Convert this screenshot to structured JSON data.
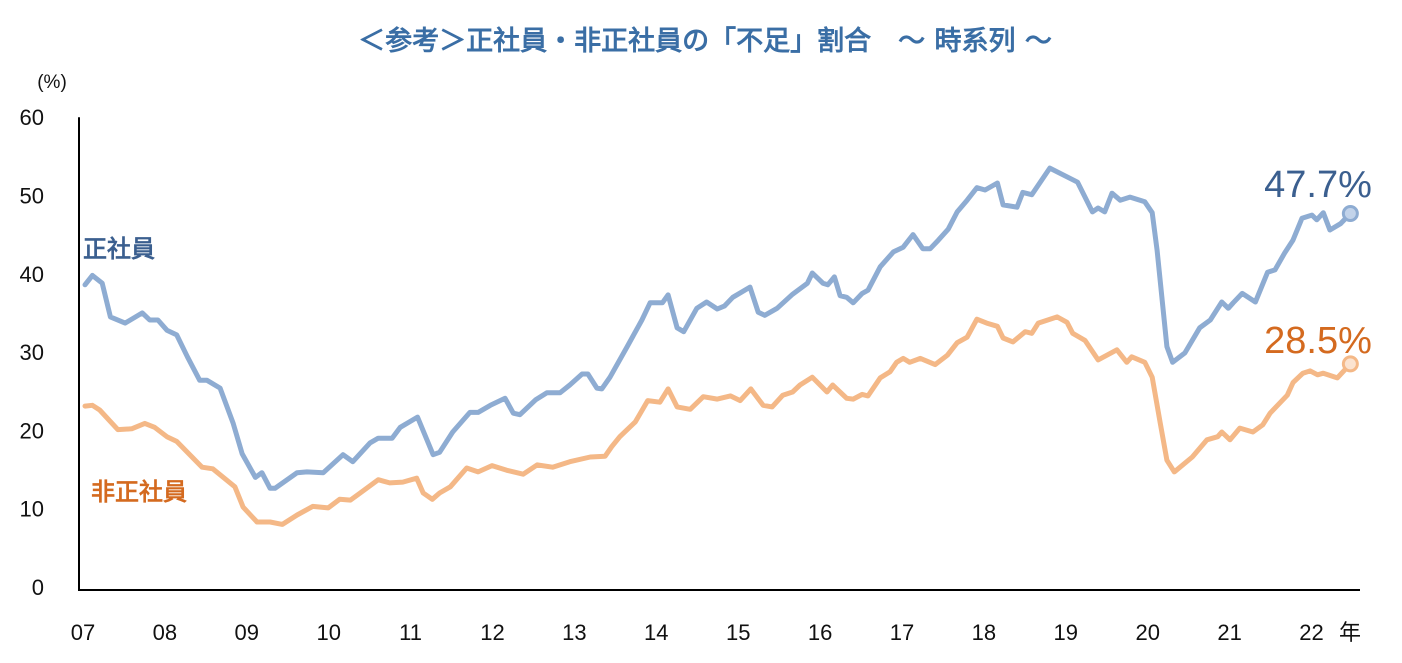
{
  "chart_data": {
    "type": "line",
    "title": "＜参考＞正社員・非正社員の「不足」割合　～ 時系列 ～",
    "ylabel": "(%)",
    "xlabel": "",
    "x_unit_label": "年",
    "ylim": [
      0,
      60
    ],
    "yticks": [
      0,
      10,
      20,
      30,
      40,
      50,
      60
    ],
    "xlim": [
      2007,
      2022.6
    ],
    "xtick_values": [
      2007,
      2008,
      2009,
      2010,
      2011,
      2012,
      2013,
      2014,
      2015,
      2016,
      2017,
      2018,
      2019,
      2020,
      2021,
      2022
    ],
    "xtick_labels": [
      "07",
      "08",
      "09",
      "10",
      "11",
      "12",
      "13",
      "14",
      "15",
      "16",
      "17",
      "18",
      "19",
      "20",
      "21",
      "22"
    ],
    "grid": false,
    "legend": "inline labels",
    "series": [
      {
        "name": "正社員",
        "color": "#8eacd2",
        "label_color": "#3b5f8f",
        "end_label": "47.7%",
        "points": [
          [
            2007.0,
            38.6
          ],
          [
            2007.09,
            39.8
          ],
          [
            2007.21,
            38.8
          ],
          [
            2007.31,
            34.5
          ],
          [
            2007.49,
            33.7
          ],
          [
            2007.7,
            35.0
          ],
          [
            2007.79,
            34.1
          ],
          [
            2007.89,
            34.1
          ],
          [
            2008.0,
            32.8
          ],
          [
            2008.12,
            32.2
          ],
          [
            2008.25,
            29.4
          ],
          [
            2008.4,
            26.4
          ],
          [
            2008.49,
            26.4
          ],
          [
            2008.65,
            25.4
          ],
          [
            2008.81,
            20.9
          ],
          [
            2008.92,
            17.0
          ],
          [
            2009.08,
            14.0
          ],
          [
            2009.16,
            14.6
          ],
          [
            2009.26,
            12.6
          ],
          [
            2009.32,
            12.6
          ],
          [
            2009.59,
            14.6
          ],
          [
            2009.71,
            14.7
          ],
          [
            2009.91,
            14.6
          ],
          [
            2010.15,
            16.9
          ],
          [
            2010.27,
            16.0
          ],
          [
            2010.48,
            18.4
          ],
          [
            2010.58,
            19.0
          ],
          [
            2010.75,
            19.0
          ],
          [
            2010.85,
            20.4
          ],
          [
            2011.06,
            21.7
          ],
          [
            2011.25,
            16.9
          ],
          [
            2011.33,
            17.2
          ],
          [
            2011.49,
            19.8
          ],
          [
            2011.7,
            22.3
          ],
          [
            2011.8,
            22.3
          ],
          [
            2011.95,
            23.2
          ],
          [
            2012.13,
            24.1
          ],
          [
            2012.23,
            22.2
          ],
          [
            2012.31,
            22.0
          ],
          [
            2012.5,
            23.9
          ],
          [
            2012.64,
            24.8
          ],
          [
            2012.8,
            24.8
          ],
          [
            2012.92,
            25.8
          ],
          [
            2013.07,
            27.2
          ],
          [
            2013.14,
            27.2
          ],
          [
            2013.25,
            25.4
          ],
          [
            2013.31,
            25.3
          ],
          [
            2013.41,
            26.8
          ],
          [
            2013.62,
            30.7
          ],
          [
            2013.8,
            34.1
          ],
          [
            2013.9,
            36.3
          ],
          [
            2014.05,
            36.3
          ],
          [
            2014.12,
            37.3
          ],
          [
            2014.23,
            33.1
          ],
          [
            2014.31,
            32.6
          ],
          [
            2014.47,
            35.6
          ],
          [
            2014.59,
            36.4
          ],
          [
            2014.72,
            35.5
          ],
          [
            2014.81,
            35.9
          ],
          [
            2014.91,
            37.0
          ],
          [
            2015.12,
            38.3
          ],
          [
            2015.22,
            35.1
          ],
          [
            2015.3,
            34.7
          ],
          [
            2015.45,
            35.6
          ],
          [
            2015.64,
            37.4
          ],
          [
            2015.82,
            38.8
          ],
          [
            2015.88,
            40.1
          ],
          [
            2016.01,
            38.8
          ],
          [
            2016.07,
            38.6
          ],
          [
            2016.15,
            39.6
          ],
          [
            2016.22,
            37.2
          ],
          [
            2016.3,
            37.0
          ],
          [
            2016.38,
            36.3
          ],
          [
            2016.49,
            37.5
          ],
          [
            2016.56,
            37.9
          ],
          [
            2016.71,
            40.9
          ],
          [
            2016.87,
            42.8
          ],
          [
            2016.99,
            43.4
          ],
          [
            2017.11,
            45.0
          ],
          [
            2017.23,
            43.2
          ],
          [
            2017.32,
            43.2
          ],
          [
            2017.42,
            44.3
          ],
          [
            2017.54,
            45.7
          ],
          [
            2017.65,
            47.9
          ],
          [
            2017.77,
            49.4
          ],
          [
            2017.89,
            51.0
          ],
          [
            2017.99,
            50.7
          ],
          [
            2018.14,
            51.6
          ],
          [
            2018.21,
            48.8
          ],
          [
            2018.38,
            48.5
          ],
          [
            2018.45,
            50.4
          ],
          [
            2018.56,
            50.1
          ],
          [
            2018.78,
            53.5
          ],
          [
            2019.12,
            51.7
          ],
          [
            2019.3,
            47.9
          ],
          [
            2019.37,
            48.4
          ],
          [
            2019.45,
            47.9
          ],
          [
            2019.54,
            50.3
          ],
          [
            2019.64,
            49.4
          ],
          [
            2019.76,
            49.8
          ],
          [
            2019.94,
            49.2
          ],
          [
            2020.03,
            47.8
          ],
          [
            2020.09,
            43.0
          ],
          [
            2020.21,
            30.7
          ],
          [
            2020.28,
            28.7
          ],
          [
            2020.43,
            29.9
          ],
          [
            2020.61,
            33.1
          ],
          [
            2020.74,
            34.1
          ],
          [
            2020.88,
            36.4
          ],
          [
            2020.96,
            35.6
          ],
          [
            2021.02,
            36.3
          ],
          [
            2021.13,
            37.5
          ],
          [
            2021.29,
            36.4
          ],
          [
            2021.44,
            40.2
          ],
          [
            2021.53,
            40.5
          ],
          [
            2021.65,
            42.7
          ],
          [
            2021.75,
            44.3
          ],
          [
            2021.86,
            47.1
          ],
          [
            2021.98,
            47.5
          ],
          [
            2022.04,
            46.9
          ],
          [
            2022.12,
            47.8
          ],
          [
            2022.2,
            45.6
          ],
          [
            2022.33,
            46.4
          ],
          [
            2022.45,
            47.7
          ]
        ]
      },
      {
        "name": "非正社員",
        "color": "#f4b887",
        "label_color": "#d46a1f",
        "end_label": "28.5%",
        "points": [
          [
            2007.0,
            23.1
          ],
          [
            2007.09,
            23.2
          ],
          [
            2007.18,
            22.6
          ],
          [
            2007.4,
            20.1
          ],
          [
            2007.57,
            20.2
          ],
          [
            2007.73,
            20.9
          ],
          [
            2007.85,
            20.4
          ],
          [
            2008.0,
            19.2
          ],
          [
            2008.12,
            18.6
          ],
          [
            2008.28,
            16.9
          ],
          [
            2008.43,
            15.3
          ],
          [
            2008.56,
            15.1
          ],
          [
            2008.83,
            12.8
          ],
          [
            2008.93,
            10.2
          ],
          [
            2009.1,
            8.3
          ],
          [
            2009.26,
            8.3
          ],
          [
            2009.41,
            8.0
          ],
          [
            2009.59,
            9.2
          ],
          [
            2009.78,
            10.3
          ],
          [
            2009.97,
            10.1
          ],
          [
            2010.11,
            11.2
          ],
          [
            2010.24,
            11.1
          ],
          [
            2010.36,
            12.0
          ],
          [
            2010.58,
            13.7
          ],
          [
            2010.72,
            13.3
          ],
          [
            2010.88,
            13.4
          ],
          [
            2011.05,
            13.9
          ],
          [
            2011.13,
            12.0
          ],
          [
            2011.24,
            11.2
          ],
          [
            2011.33,
            12.0
          ],
          [
            2011.46,
            12.8
          ],
          [
            2011.66,
            15.2
          ],
          [
            2011.8,
            14.7
          ],
          [
            2011.97,
            15.5
          ],
          [
            2012.15,
            14.9
          ],
          [
            2012.35,
            14.4
          ],
          [
            2012.52,
            15.6
          ],
          [
            2012.71,
            15.3
          ],
          [
            2012.92,
            16.0
          ],
          [
            2013.17,
            16.6
          ],
          [
            2013.35,
            16.7
          ],
          [
            2013.43,
            17.9
          ],
          [
            2013.53,
            19.2
          ],
          [
            2013.72,
            21.1
          ],
          [
            2013.87,
            23.8
          ],
          [
            2014.02,
            23.6
          ],
          [
            2014.12,
            25.3
          ],
          [
            2014.23,
            23.0
          ],
          [
            2014.39,
            22.7
          ],
          [
            2014.55,
            24.3
          ],
          [
            2014.72,
            24.0
          ],
          [
            2014.88,
            24.4
          ],
          [
            2015.0,
            23.8
          ],
          [
            2015.13,
            25.3
          ],
          [
            2015.28,
            23.2
          ],
          [
            2015.39,
            23.0
          ],
          [
            2015.52,
            24.5
          ],
          [
            2015.64,
            24.9
          ],
          [
            2015.73,
            25.8
          ],
          [
            2015.88,
            26.8
          ],
          [
            2016.06,
            24.9
          ],
          [
            2016.13,
            25.8
          ],
          [
            2016.3,
            24.1
          ],
          [
            2016.38,
            24.0
          ],
          [
            2016.49,
            24.6
          ],
          [
            2016.56,
            24.4
          ],
          [
            2016.71,
            26.7
          ],
          [
            2016.83,
            27.5
          ],
          [
            2016.91,
            28.7
          ],
          [
            2016.99,
            29.2
          ],
          [
            2017.07,
            28.7
          ],
          [
            2017.2,
            29.2
          ],
          [
            2017.38,
            28.4
          ],
          [
            2017.53,
            29.6
          ],
          [
            2017.65,
            31.2
          ],
          [
            2017.77,
            31.9
          ],
          [
            2017.89,
            34.2
          ],
          [
            2018.01,
            33.7
          ],
          [
            2018.14,
            33.3
          ],
          [
            2018.21,
            31.8
          ],
          [
            2018.33,
            31.3
          ],
          [
            2018.48,
            32.6
          ],
          [
            2018.56,
            32.4
          ],
          [
            2018.64,
            33.7
          ],
          [
            2018.87,
            34.5
          ],
          [
            2018.99,
            33.8
          ],
          [
            2019.06,
            32.4
          ],
          [
            2019.21,
            31.5
          ],
          [
            2019.37,
            29.0
          ],
          [
            2019.6,
            30.3
          ],
          [
            2019.72,
            28.7
          ],
          [
            2019.78,
            29.4
          ],
          [
            2019.94,
            28.7
          ],
          [
            2020.03,
            26.8
          ],
          [
            2020.13,
            20.9
          ],
          [
            2020.21,
            16.2
          ],
          [
            2020.3,
            14.7
          ],
          [
            2020.52,
            16.6
          ],
          [
            2020.7,
            18.8
          ],
          [
            2020.83,
            19.2
          ],
          [
            2020.88,
            19.8
          ],
          [
            2020.98,
            18.8
          ],
          [
            2021.1,
            20.3
          ],
          [
            2021.26,
            19.8
          ],
          [
            2021.38,
            20.7
          ],
          [
            2021.47,
            22.2
          ],
          [
            2021.68,
            24.5
          ],
          [
            2021.75,
            26.1
          ],
          [
            2021.87,
            27.3
          ],
          [
            2021.96,
            27.6
          ],
          [
            2022.05,
            27.1
          ],
          [
            2022.12,
            27.3
          ],
          [
            2022.29,
            26.7
          ],
          [
            2022.45,
            28.5
          ]
        ]
      }
    ]
  },
  "colors": {
    "title": "#3a6ea5",
    "axis": "#000000"
  }
}
